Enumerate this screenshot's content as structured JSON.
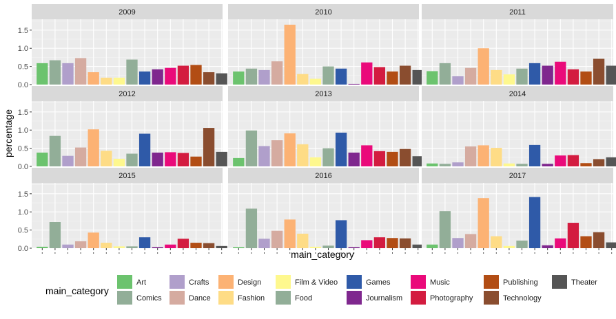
{
  "chart_data": {
    "type": "bar",
    "facet_by": "year",
    "ylabel": "percentage",
    "xlabel": "main_category",
    "ylim": [
      0,
      1.8
    ],
    "yticks": [
      0.0,
      0.5,
      1.0,
      1.5
    ],
    "ytick_labels": [
      "0.0",
      "0.5",
      "1.0",
      "1.5"
    ],
    "grid": true,
    "legend_position": "bottom",
    "legend_title": "main_category",
    "categories": [
      "Art",
      "Comics",
      "Crafts",
      "Dance",
      "Design",
      "Fashion",
      "Film & Video",
      "Food",
      "Games",
      "Journalism",
      "Music",
      "Photography",
      "Publishing",
      "Technology",
      "Theater"
    ],
    "colors": [
      "#6cc36e",
      "#92ae98",
      "#b09fcb",
      "#d5aba0",
      "#fcb274",
      "#fedc86",
      "#fef88e",
      "#92ae98",
      "#2f5aa8",
      "#7f278e",
      "#ea0a7a",
      "#d31c40",
      "#b24d14",
      "#8a4d2f",
      "#555555"
    ],
    "panels": [
      {
        "label": "2009",
        "values": [
          0.59,
          0.67,
          0.59,
          0.73,
          0.34,
          0.19,
          0.19,
          0.69,
          0.36,
          0.42,
          0.46,
          0.52,
          0.54,
          0.34,
          0.31
        ]
      },
      {
        "label": "2010",
        "values": [
          0.36,
          0.44,
          0.4,
          0.64,
          1.65,
          0.29,
          0.16,
          0.5,
          0.44,
          0.02,
          0.61,
          0.48,
          0.36,
          0.52,
          0.4
        ]
      },
      {
        "label": "2011",
        "values": [
          0.37,
          0.59,
          0.23,
          0.46,
          1.0,
          0.4,
          0.28,
          0.44,
          0.59,
          0.52,
          0.63,
          0.42,
          0.36,
          0.71,
          0.52
        ]
      },
      {
        "label": "2012",
        "values": [
          0.38,
          0.84,
          0.29,
          0.52,
          1.02,
          0.43,
          0.21,
          0.35,
          0.9,
          0.38,
          0.39,
          0.37,
          0.27,
          1.06,
          0.4
        ]
      },
      {
        "label": "2013",
        "values": [
          0.23,
          0.99,
          0.56,
          0.72,
          0.91,
          0.61,
          0.25,
          0.5,
          0.93,
          0.38,
          0.58,
          0.42,
          0.4,
          0.48,
          0.28
        ]
      },
      {
        "label": "2014",
        "values": [
          0.08,
          0.07,
          0.11,
          0.55,
          0.58,
          0.51,
          0.08,
          0.07,
          0.59,
          0.07,
          0.3,
          0.31,
          0.09,
          0.2,
          0.25
        ]
      },
      {
        "label": "2015",
        "values": [
          0.04,
          0.72,
          0.1,
          0.19,
          0.43,
          0.15,
          0.05,
          0.05,
          0.3,
          0.03,
          0.1,
          0.26,
          0.15,
          0.14,
          0.06
        ]
      },
      {
        "label": "2016",
        "values": [
          0.03,
          1.09,
          0.26,
          0.48,
          0.79,
          0.4,
          0.04,
          0.07,
          0.77,
          0.03,
          0.22,
          0.3,
          0.28,
          0.27,
          0.1
        ]
      },
      {
        "label": "2017",
        "values": [
          0.1,
          1.02,
          0.28,
          0.39,
          1.38,
          0.33,
          0.06,
          0.21,
          1.41,
          0.08,
          0.27,
          0.7,
          0.33,
          0.44,
          0.16
        ]
      }
    ]
  }
}
